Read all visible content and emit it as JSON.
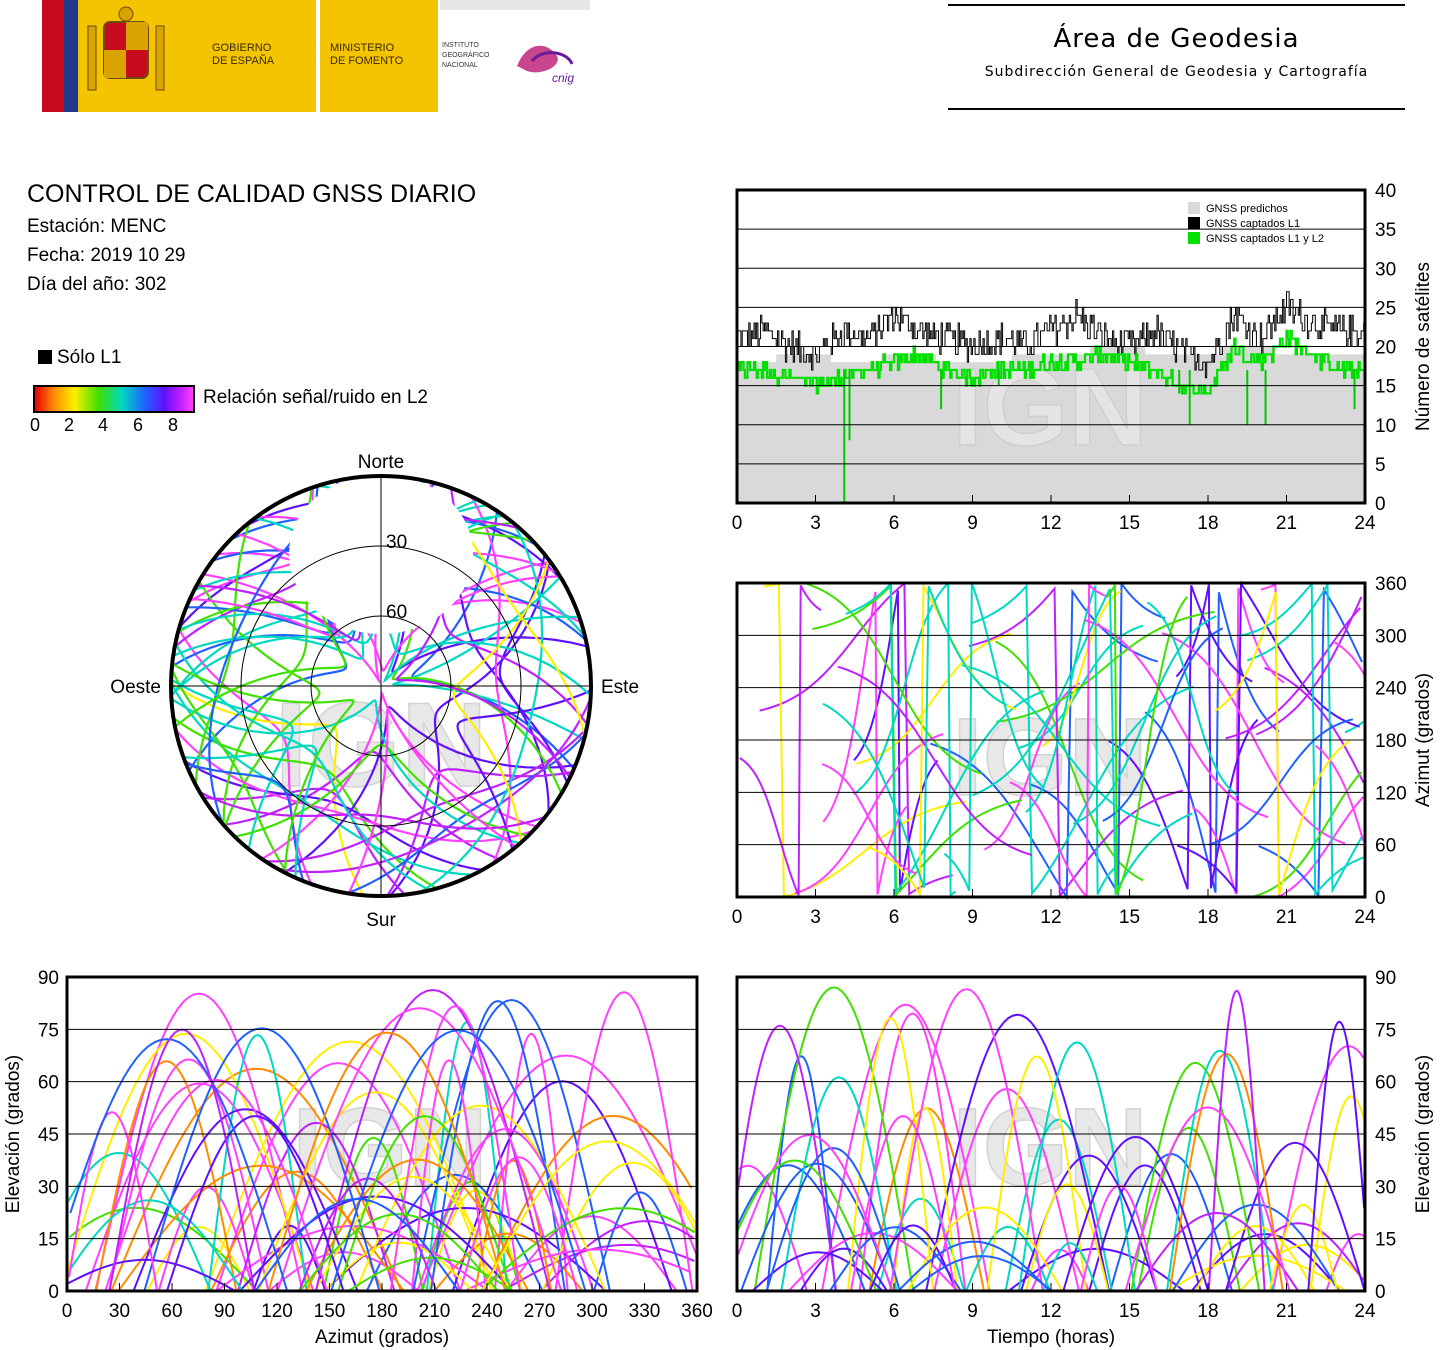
{
  "header": {
    "gov_line1": "GOBIERNO",
    "gov_line2": "DE ESPAÑA",
    "min_line1": "MINISTERIO",
    "min_line2": "DE FOMENTO",
    "inst_line1": "INSTITUTO",
    "inst_line2": "GEOGRÁFICO",
    "inst_line3": "NACIONAL",
    "cnig": "cnig",
    "area_title": "Área de Geodesia",
    "area_subtitle": "Subdirección General de Geodesia y Cartografía"
  },
  "info": {
    "title": "CONTROL DE CALIDAD GNSS DIARIO",
    "station": "Estación: MENC",
    "date": "Fecha: 2019 10 29",
    "doy": "Día del año: 302"
  },
  "legend": {
    "solo_l1": "Sólo L1",
    "snr_label": "Relación señal/ruido en L2",
    "snr_ticks": [
      "0",
      "2",
      "4",
      "6",
      "8"
    ],
    "snr_colors": [
      "#e8000b",
      "#ff8c00",
      "#ffee00",
      "#40e000",
      "#00d8c0",
      "#2060ff",
      "#6010ff",
      "#c020ff",
      "#ff40ff"
    ]
  },
  "watermark": "IGN",
  "chart_data": [
    {
      "id": "satellites",
      "type": "area",
      "xlabel": "",
      "ylabel": "Número de satélites",
      "xlim": [
        0,
        24
      ],
      "ylim": [
        0,
        40
      ],
      "xticks": [
        "0",
        "3",
        "6",
        "9",
        "12",
        "15",
        "18",
        "21",
        "24"
      ],
      "yticks": [
        "0",
        "5",
        "10",
        "15",
        "20",
        "25",
        "30",
        "35",
        "40"
      ],
      "y_axis_side": "right",
      "legend_position": "top-right",
      "grid": true,
      "legend": [
        "GNSS predichos",
        "GNSS captados L1",
        "GNSS captados L1 y L2"
      ],
      "series": [
        {
          "name": "GNSS predichos",
          "color": "#d9d9d9",
          "x": [
            0,
            1,
            2,
            3,
            4,
            5,
            6,
            7,
            8,
            9,
            10,
            11,
            12,
            13,
            14,
            15,
            16,
            17,
            18,
            19,
            20,
            21,
            22,
            23,
            24
          ],
          "values": [
            18,
            18,
            19,
            19,
            18,
            18,
            19,
            19,
            18,
            18,
            18,
            19,
            19,
            19,
            20,
            20,
            19,
            19,
            19,
            20,
            20,
            19,
            19,
            19,
            19
          ]
        },
        {
          "name": "GNSS captados L1",
          "color": "#000000",
          "x": [
            0,
            1,
            2,
            3,
            4,
            5,
            6,
            7,
            8,
            9,
            10,
            11,
            12,
            13,
            14,
            15,
            16,
            17,
            18,
            19,
            20,
            21,
            22,
            23,
            24
          ],
          "values": [
            21,
            22,
            20,
            19,
            22,
            21,
            24,
            22,
            21,
            20,
            21,
            20,
            22,
            24,
            21,
            20,
            22,
            19,
            18,
            24,
            21,
            25,
            23,
            22,
            22
          ]
        },
        {
          "name": "GNSS captados L1 y L2",
          "color": "#00e000",
          "x": [
            0,
            1,
            2,
            3,
            4,
            5,
            6,
            7,
            8,
            9,
            10,
            11,
            12,
            13,
            14,
            15,
            16,
            17,
            18,
            19,
            20,
            21,
            22,
            23,
            24
          ],
          "values": [
            17,
            17,
            16,
            15,
            16,
            17,
            18,
            19,
            17,
            16,
            17,
            17,
            18,
            18,
            19,
            18,
            17,
            15,
            14,
            20,
            18,
            21,
            19,
            17,
            17
          ]
        }
      ]
    },
    {
      "id": "skyplot",
      "type": "scatter",
      "title": "",
      "projection": "polar",
      "direction_labels": {
        "north": "Norte",
        "south": "Sur",
        "east": "Este",
        "west": "Oeste"
      },
      "ring_labels": [
        "30",
        "60"
      ]
    },
    {
      "id": "azimuth-time",
      "type": "scatter",
      "xlabel": "",
      "ylabel": "Azimut (grados)",
      "xlim": [
        0,
        24
      ],
      "ylim": [
        0,
        360
      ],
      "xticks": [
        "0",
        "3",
        "6",
        "9",
        "12",
        "15",
        "18",
        "21",
        "24"
      ],
      "yticks": [
        "0",
        "60",
        "120",
        "180",
        "240",
        "300",
        "360"
      ],
      "y_axis_side": "right",
      "grid": true
    },
    {
      "id": "elevation-azimuth",
      "type": "scatter",
      "xlabel": "Azimut (grados)",
      "ylabel": "Elevación (grados)",
      "xlim": [
        0,
        360
      ],
      "ylim": [
        0,
        90
      ],
      "xticks": [
        "0",
        "30",
        "60",
        "90",
        "120",
        "150",
        "180",
        "210",
        "240",
        "270",
        "300",
        "330",
        "360"
      ],
      "yticks": [
        "0",
        "15",
        "30",
        "45",
        "60",
        "75",
        "90"
      ],
      "y_axis_side": "left",
      "grid": true
    },
    {
      "id": "elevation-time",
      "type": "scatter",
      "xlabel": "Tiempo (horas)",
      "ylabel": "Elevación (grados)",
      "xlim": [
        0,
        24
      ],
      "ylim": [
        0,
        90
      ],
      "xticks": [
        "0",
        "3",
        "6",
        "9",
        "12",
        "15",
        "18",
        "21",
        "24"
      ],
      "yticks": [
        "0",
        "15",
        "30",
        "45",
        "60",
        "75",
        "90"
      ],
      "y_axis_side": "right",
      "grid": true
    }
  ]
}
